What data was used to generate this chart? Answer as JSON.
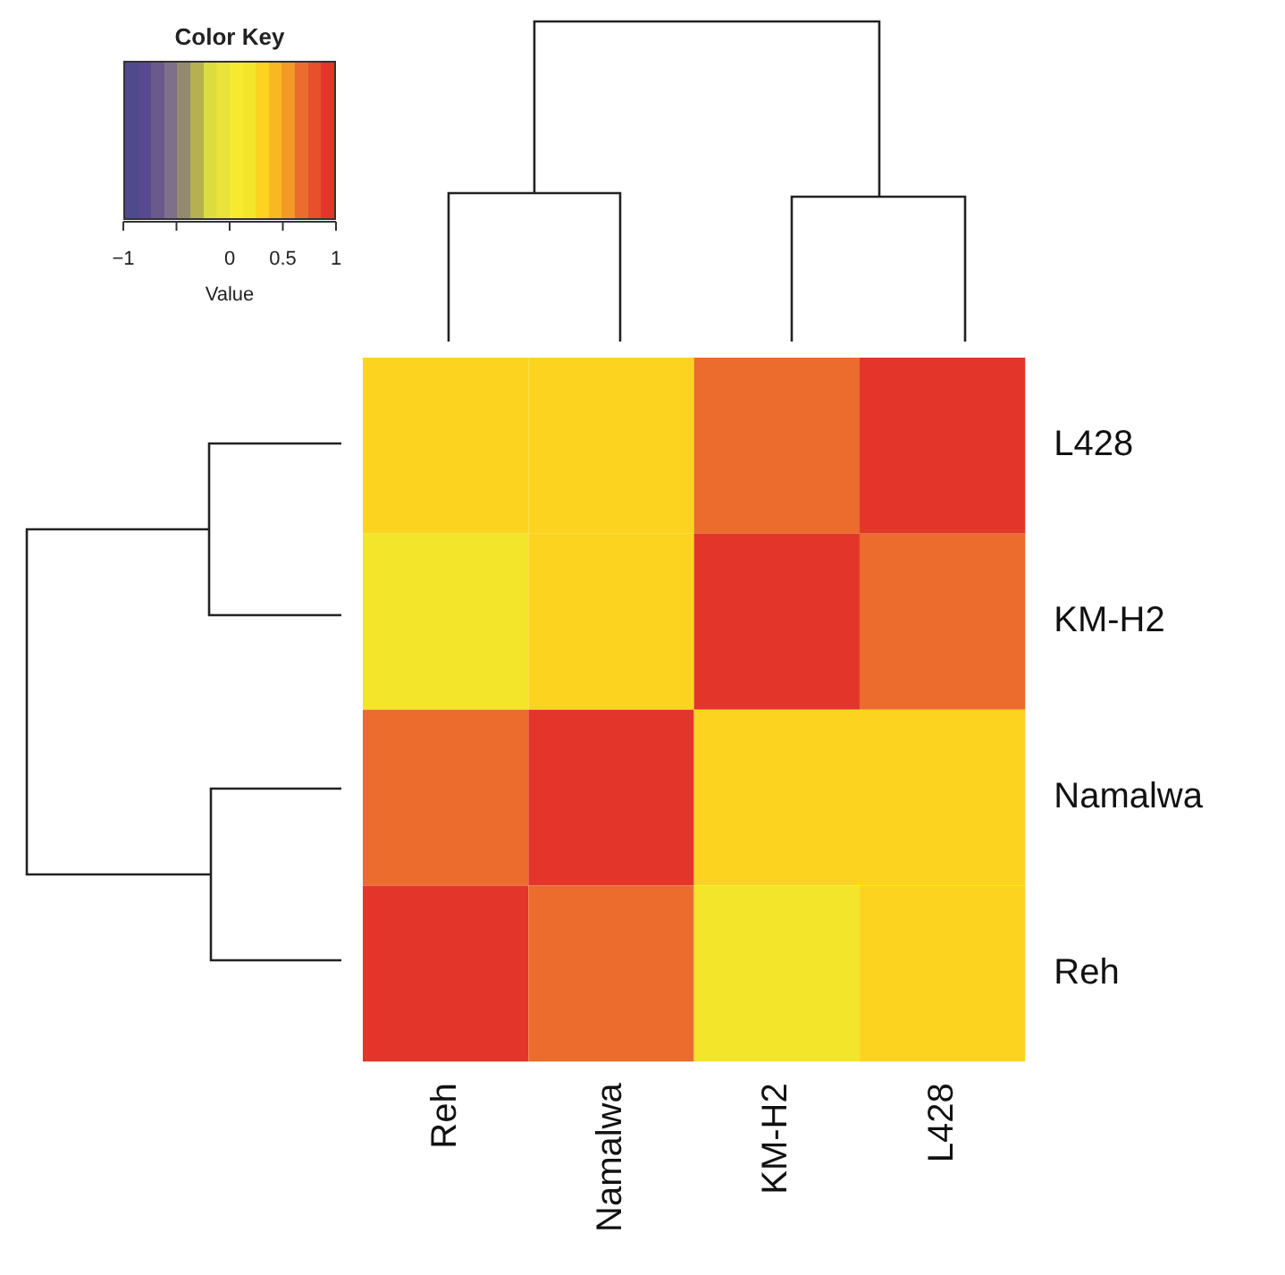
{
  "chart_data": {
    "type": "heatmap",
    "legend_title": "Color Key",
    "clabel": "Value",
    "categories": [
      "Reh",
      "Namalwa",
      "KM-H2",
      "L428"
    ],
    "y_categories": [
      "L428",
      "KM-H2",
      "Namalwa",
      "Reh"
    ],
    "cells": [
      [
        0.3,
        0.3,
        0.7,
        1
      ],
      [
        0.2,
        0.3,
        1,
        0.7
      ],
      [
        0.7,
        1,
        0.3,
        0.3
      ],
      [
        1,
        0.7,
        0.2,
        0.3
      ]
    ],
    "clim": [
      -1,
      1
    ],
    "cticks": [
      {
        "value": -1,
        "label": "−1"
      },
      {
        "value": -0.5,
        "label": null
      },
      0,
      0.5,
      1
    ],
    "grid": false
  }
}
